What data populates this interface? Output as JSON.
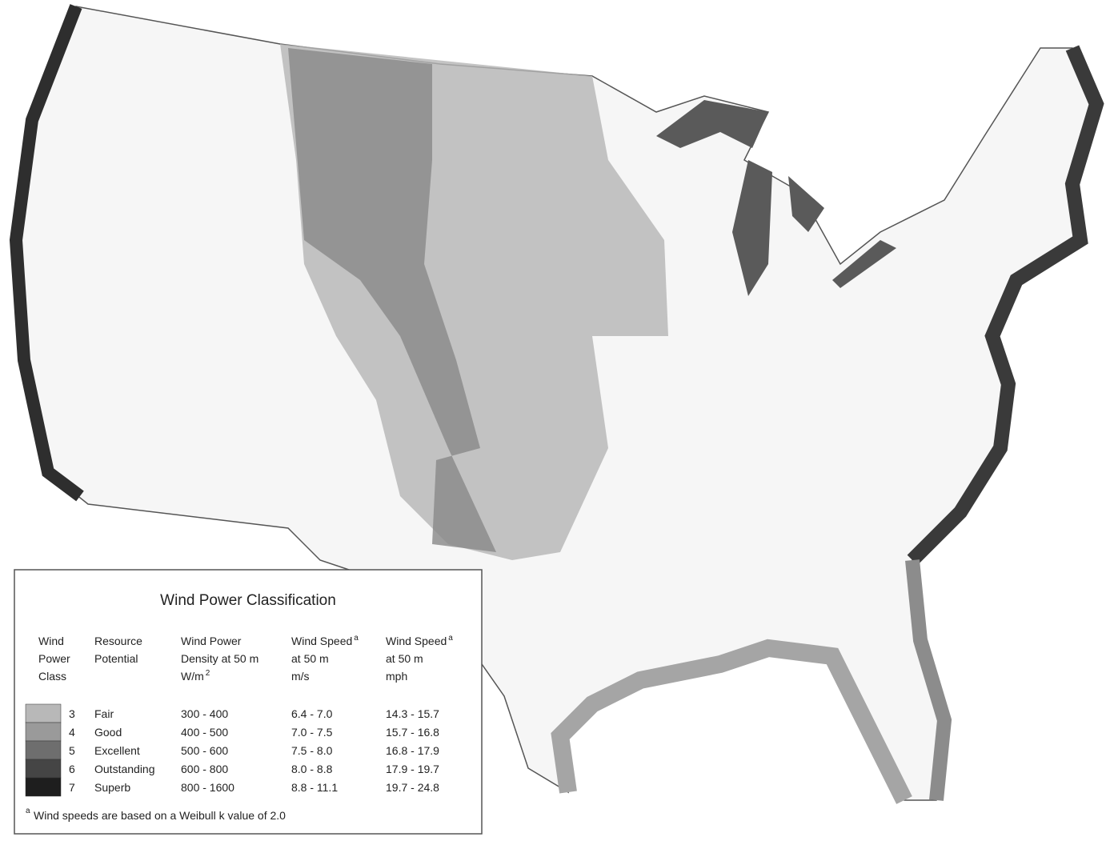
{
  "legend": {
    "title": "Wind Power Classification",
    "headers": [
      {
        "lines": [
          "Wind",
          "Power",
          "Class"
        ]
      },
      {
        "lines": [
          "Resource",
          "Potential"
        ]
      },
      {
        "lines": [
          "Wind Power",
          "Density at 50 m",
          "W/m"
        ],
        "sup": "2"
      },
      {
        "lines": [
          "Wind Speed",
          "at 50 m",
          "m/s"
        ],
        "sup": "a"
      },
      {
        "lines": [
          "Wind Speed",
          "at 50 m",
          "mph"
        ],
        "sup": "a"
      }
    ],
    "rows": [
      {
        "color": "#b8b8b8",
        "cells": [
          3,
          "Fair",
          "300 - 400",
          "6.4 - 7.0",
          "14.3 - 15.7"
        ]
      },
      {
        "color": "#9a9a9a",
        "cells": [
          4,
          "Good",
          "400 - 500",
          "7.0 - 7.5",
          "15.7 - 16.8"
        ]
      },
      {
        "color": "#6e6e6e",
        "cells": [
          5,
          "Excellent",
          "500 - 600",
          "7.5 - 8.0",
          "16.8 - 17.9"
        ]
      },
      {
        "color": "#454545",
        "cells": [
          6,
          "Outstanding",
          "600 - 800",
          "8.0 - 8.8",
          "17.9 - 19.7"
        ]
      },
      {
        "color": "#1e1e1e",
        "cells": [
          7,
          "Superb",
          "800 - 1600",
          "8.8 - 11.1",
          "19.7 - 24.8"
        ]
      }
    ],
    "footnote": {
      "sup": "a",
      "text": "Wind speeds are based on a Weibull k value of 2.0"
    }
  }
}
